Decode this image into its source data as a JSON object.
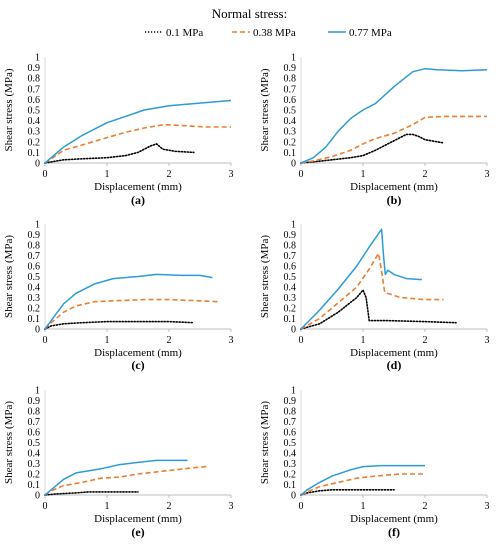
{
  "legend": {
    "title": "Normal stress:",
    "entries": [
      {
        "label": "0.1 MPa",
        "color": "#000000",
        "dash": "dotted"
      },
      {
        "label": "0.38 MPa",
        "color": "#ED7D31",
        "dash": "dashed"
      },
      {
        "label": "0.77 MPa",
        "color": "#2E9BD6",
        "dash": "solid"
      }
    ]
  },
  "chart_data": [
    {
      "type": "line",
      "panel": "(a)",
      "xlabel": "Displacement (mm)",
      "ylabel": "Shear stress (MPa)",
      "xlim": [
        0,
        3
      ],
      "ylim": [
        0,
        1
      ],
      "xticks": [
        "0",
        "1",
        "2",
        "3"
      ],
      "yticks": [
        "0",
        "0.1",
        "0.2",
        "0.3",
        "0.4",
        "0.5",
        "0.6",
        "0.7",
        "0.8",
        "0.9",
        "1"
      ],
      "series": [
        {
          "name": "0.1 MPa",
          "x": [
            0,
            0.1,
            0.3,
            0.6,
            1.0,
            1.3,
            1.5,
            1.7,
            1.8,
            1.9,
            2.1,
            2.4
          ],
          "y": [
            0,
            0.01,
            0.03,
            0.04,
            0.05,
            0.07,
            0.1,
            0.16,
            0.18,
            0.13,
            0.11,
            0.1
          ]
        },
        {
          "name": "0.38 MPa",
          "x": [
            0,
            0.1,
            0.3,
            0.6,
            1.0,
            1.3,
            1.6,
            1.9,
            2.0,
            2.3,
            2.6,
            3.0
          ],
          "y": [
            0,
            0.04,
            0.12,
            0.17,
            0.24,
            0.29,
            0.33,
            0.36,
            0.36,
            0.35,
            0.34,
            0.34
          ]
        },
        {
          "name": "0.77 MPa",
          "x": [
            0,
            0.1,
            0.3,
            0.6,
            1.0,
            1.3,
            1.6,
            2.0,
            2.4,
            2.8,
            3.0
          ],
          "y": [
            0,
            0.05,
            0.15,
            0.26,
            0.38,
            0.44,
            0.5,
            0.54,
            0.56,
            0.58,
            0.59
          ]
        }
      ]
    },
    {
      "type": "line",
      "panel": "(b)",
      "xlabel": "Displacement (mm)",
      "ylabel": "Shear stress (MPa)",
      "xlim": [
        0,
        3
      ],
      "ylim": [
        0,
        1
      ],
      "xticks": [
        "0",
        "1",
        "2",
        "3"
      ],
      "yticks": [
        "0",
        "0.1",
        "0.2",
        "0.3",
        "0.4",
        "0.5",
        "0.6",
        "0.7",
        "0.8",
        "0.9",
        "1"
      ],
      "series": [
        {
          "name": "0.1 MPa",
          "x": [
            0,
            0.2,
            0.5,
            0.8,
            1.0,
            1.2,
            1.5,
            1.7,
            1.8,
            1.9,
            2.0,
            2.3
          ],
          "y": [
            0,
            0.01,
            0.03,
            0.05,
            0.07,
            0.12,
            0.21,
            0.27,
            0.27,
            0.25,
            0.22,
            0.19
          ]
        },
        {
          "name": "0.38 MPa",
          "x": [
            0,
            0.2,
            0.5,
            0.8,
            1.0,
            1.2,
            1.5,
            1.8,
            2.0,
            2.3,
            2.6,
            3.0
          ],
          "y": [
            0,
            0.02,
            0.06,
            0.12,
            0.18,
            0.23,
            0.28,
            0.36,
            0.43,
            0.44,
            0.44,
            0.44
          ]
        },
        {
          "name": "0.77 MPa",
          "x": [
            0,
            0.2,
            0.4,
            0.6,
            0.8,
            1.0,
            1.2,
            1.5,
            1.8,
            2.0,
            2.2,
            2.6,
            3.0
          ],
          "y": [
            0,
            0.05,
            0.15,
            0.3,
            0.42,
            0.5,
            0.56,
            0.72,
            0.86,
            0.89,
            0.88,
            0.87,
            0.88
          ]
        }
      ]
    },
    {
      "type": "line",
      "panel": "(c)",
      "xlabel": "Displacement (mm)",
      "ylabel": "Shear stress (MPa)",
      "xlim": [
        0,
        3
      ],
      "ylim": [
        0,
        1
      ],
      "xticks": [
        "0",
        "1",
        "2",
        "3"
      ],
      "yticks": [
        "0",
        "0.1",
        "0.2",
        "0.3",
        "0.4",
        "0.5",
        "0.6",
        "0.7",
        "0.8",
        "0.9",
        "1"
      ],
      "series": [
        {
          "name": "0.1 MPa",
          "x": [
            0,
            0.1,
            0.3,
            0.6,
            1.0,
            1.5,
            2.0,
            2.4
          ],
          "y": [
            0,
            0.03,
            0.05,
            0.06,
            0.07,
            0.07,
            0.07,
            0.06
          ]
        },
        {
          "name": "0.38 MPa",
          "x": [
            0,
            0.1,
            0.3,
            0.5,
            0.8,
            1.2,
            1.6,
            2.0,
            2.4,
            2.8
          ],
          "y": [
            0,
            0.06,
            0.16,
            0.22,
            0.26,
            0.27,
            0.28,
            0.28,
            0.27,
            0.26
          ]
        },
        {
          "name": "0.77 MPa",
          "x": [
            0,
            0.1,
            0.3,
            0.5,
            0.8,
            1.1,
            1.5,
            1.8,
            2.2,
            2.5,
            2.7
          ],
          "y": [
            0,
            0.08,
            0.24,
            0.34,
            0.43,
            0.48,
            0.5,
            0.52,
            0.51,
            0.51,
            0.49
          ]
        }
      ]
    },
    {
      "type": "line",
      "panel": "(d)",
      "xlabel": "Displacement (mm)",
      "ylabel": "Shear stress (MPa)",
      "xlim": [
        0,
        3
      ],
      "ylim": [
        0,
        1
      ],
      "xticks": [
        "0",
        "1",
        "2",
        "3"
      ],
      "yticks": [
        "0",
        "0.1",
        "0.2",
        "0.3",
        "0.4",
        "0.5",
        "0.6",
        "0.7",
        "0.8",
        "0.9",
        "1"
      ],
      "series": [
        {
          "name": "0.1 MPa",
          "x": [
            0,
            0.3,
            0.6,
            0.9,
            1.0,
            1.05,
            1.1,
            1.4,
            2.0,
            2.5
          ],
          "y": [
            0,
            0.05,
            0.16,
            0.3,
            0.37,
            0.3,
            0.08,
            0.08,
            0.07,
            0.06
          ]
        },
        {
          "name": "0.38 MPa",
          "x": [
            0,
            0.3,
            0.6,
            0.9,
            1.1,
            1.25,
            1.3,
            1.35,
            1.6,
            2.0,
            2.3
          ],
          "y": [
            0,
            0.1,
            0.25,
            0.4,
            0.57,
            0.72,
            0.55,
            0.35,
            0.3,
            0.28,
            0.28
          ]
        },
        {
          "name": "0.77 MPa",
          "x": [
            0,
            0.3,
            0.6,
            0.9,
            1.1,
            1.3,
            1.33,
            1.36,
            1.4,
            1.5,
            1.7,
            1.95
          ],
          "y": [
            0,
            0.18,
            0.38,
            0.6,
            0.78,
            0.95,
            0.7,
            0.52,
            0.56,
            0.52,
            0.48,
            0.47
          ]
        }
      ]
    },
    {
      "type": "line",
      "panel": "(e)",
      "xlabel": "Displacement (mm)",
      "ylabel": "Shear stress (MPa)",
      "xlim": [
        0,
        3
      ],
      "ylim": [
        0,
        1
      ],
      "xticks": [
        "0",
        "1",
        "2",
        "3"
      ],
      "yticks": [
        "0",
        "0.1",
        "0.2",
        "0.3",
        "0.4",
        "0.5",
        "0.6",
        "0.7",
        "0.8",
        "0.9",
        "1"
      ],
      "series": [
        {
          "name": "0.1 MPa",
          "x": [
            0,
            0.2,
            0.5,
            0.7,
            1.0,
            1.3,
            1.5
          ],
          "y": [
            0,
            0.01,
            0.02,
            0.03,
            0.03,
            0.03,
            0.03
          ]
        },
        {
          "name": "0.38 MPa",
          "x": [
            0,
            0.1,
            0.3,
            0.6,
            0.9,
            1.2,
            1.5,
            1.8,
            2.1,
            2.4,
            2.6
          ],
          "y": [
            0,
            0.04,
            0.09,
            0.12,
            0.16,
            0.17,
            0.2,
            0.22,
            0.24,
            0.26,
            0.27
          ]
        },
        {
          "name": "0.77 MPa",
          "x": [
            0,
            0.1,
            0.3,
            0.5,
            0.7,
            0.9,
            1.2,
            1.5,
            1.8,
            2.1,
            2.3
          ],
          "y": [
            0,
            0.05,
            0.15,
            0.21,
            0.23,
            0.25,
            0.29,
            0.31,
            0.33,
            0.33,
            0.33
          ]
        }
      ]
    },
    {
      "type": "line",
      "panel": "(f)",
      "xlabel": "Displacement (mm)",
      "ylabel": "Shear stress (MPa)",
      "xlim": [
        0,
        3
      ],
      "ylim": [
        0,
        1
      ],
      "xticks": [
        "0",
        "1",
        "2",
        "3"
      ],
      "yticks": [
        "0",
        "0.1",
        "0.2",
        "0.3",
        "0.4",
        "0.5",
        "0.6",
        "0.7",
        "0.8",
        "0.9",
        "1"
      ],
      "series": [
        {
          "name": "0.1 MPa",
          "x": [
            0,
            0.1,
            0.3,
            0.5,
            0.8,
            1.1,
            1.5
          ],
          "y": [
            0,
            0.02,
            0.04,
            0.05,
            0.05,
            0.05,
            0.05
          ]
        },
        {
          "name": "0.38 MPa",
          "x": [
            0,
            0.1,
            0.3,
            0.6,
            0.9,
            1.2,
            1.6,
            2.0
          ],
          "y": [
            0,
            0.03,
            0.08,
            0.12,
            0.16,
            0.18,
            0.2,
            0.2
          ]
        },
        {
          "name": "0.77 MPa",
          "x": [
            0,
            0.1,
            0.3,
            0.5,
            0.8,
            1.0,
            1.3,
            1.6,
            2.0
          ],
          "y": [
            0,
            0.05,
            0.12,
            0.18,
            0.24,
            0.27,
            0.28,
            0.28,
            0.28
          ]
        }
      ]
    }
  ]
}
